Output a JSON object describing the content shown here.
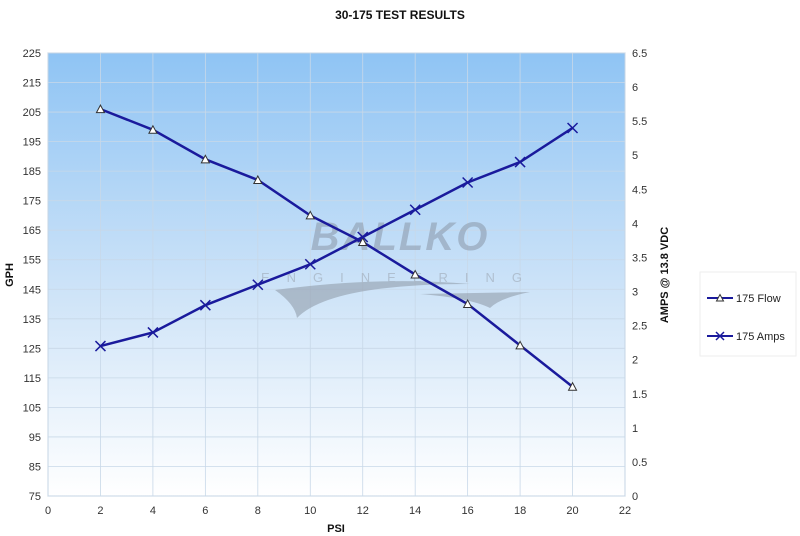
{
  "chart_data": {
    "type": "line",
    "title": "30-175 TEST RESULTS",
    "xlabel": "PSI",
    "ylabel": "GPH",
    "y2label": "AMPS @ 13.8 VDC",
    "xlim": [
      0,
      22
    ],
    "ylim": [
      75,
      225
    ],
    "y2lim": [
      0,
      6.5
    ],
    "xticks": [
      0,
      2,
      4,
      6,
      8,
      10,
      12,
      14,
      16,
      18,
      20,
      22
    ],
    "yticks": [
      75,
      85,
      95,
      105,
      115,
      125,
      135,
      145,
      155,
      165,
      175,
      185,
      195,
      205,
      215,
      225
    ],
    "y2ticks": [
      0,
      0.5,
      1,
      1.5,
      2,
      2.5,
      3,
      3.5,
      4,
      4.5,
      5,
      5.5,
      6,
      6.5
    ],
    "grid": true,
    "legend_position": "right",
    "x": [
      2,
      4,
      6,
      8,
      10,
      12,
      14,
      16,
      18,
      20
    ],
    "series": [
      {
        "name": "175 Flow",
        "axis": "left",
        "marker": "triangle",
        "color": "#1a1a9c",
        "values": [
          206,
          199,
          189,
          182,
          170,
          161,
          150,
          140,
          126,
          112
        ]
      },
      {
        "name": "175 Amps",
        "axis": "right",
        "marker": "x",
        "color": "#1a1a9c",
        "values": [
          2.2,
          2.4,
          2.8,
          3.1,
          3.4,
          3.8,
          4.2,
          4.6,
          4.9,
          5.4
        ]
      }
    ]
  },
  "watermark": {
    "brand": "BALLKO",
    "sub": "ENGINEERING"
  }
}
